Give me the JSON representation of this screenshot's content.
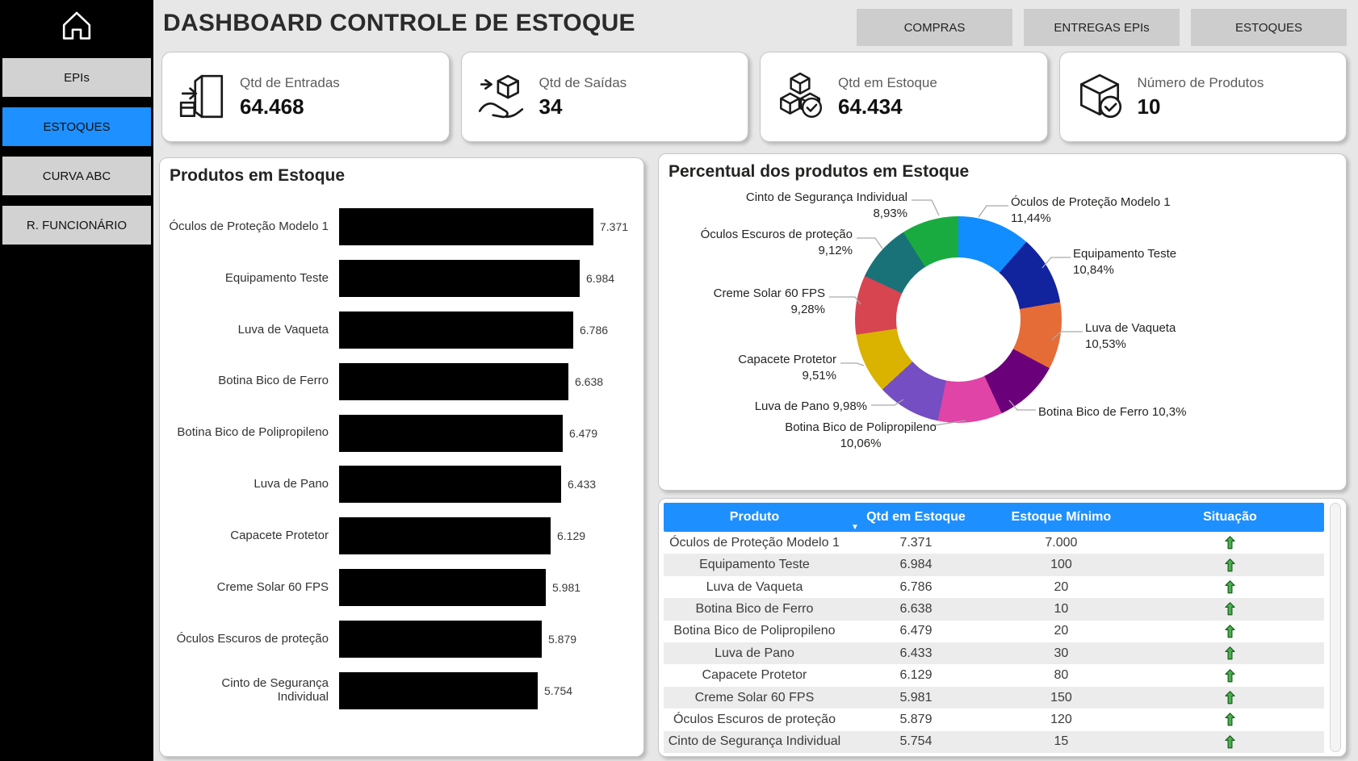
{
  "header": {
    "title": "DASHBOARD CONTROLE DE ESTOQUE",
    "nav_buttons": [
      "COMPRAS",
      "ENTREGAS EPIs",
      "ESTOQUES"
    ]
  },
  "sidebar": {
    "home_icon": "home-icon",
    "items": [
      {
        "label": "EPIs",
        "active": false
      },
      {
        "label": "ESTOQUES",
        "active": true
      },
      {
        "label": "CURVA ABC",
        "active": false
      },
      {
        "label": "R. FUNCIONÁRIO",
        "active": false
      }
    ]
  },
  "kpis": [
    {
      "icon": "entradas-door-arrow-icon",
      "label": "Qtd de Entradas",
      "value": "64.468"
    },
    {
      "icon": "saidas-hand-box-icon",
      "label": "Qtd de Saídas",
      "value": "34"
    },
    {
      "icon": "estoque-cubes-check-icon",
      "label": "Qtd em Estoque",
      "value": "64.434"
    },
    {
      "icon": "produtos-box-check-icon",
      "label": "Número de Produtos",
      "value": "10"
    }
  ],
  "colors": {
    "sidebar_bg": "#000000",
    "sidebar_button": "#d2d2d2",
    "sidebar_active": "#1e90ff",
    "page_bg": "#e7e7e7",
    "table_header": "#1e8fff",
    "bar_fill": "#000000",
    "status_up_arrow": "#4caf50"
  },
  "chart_data": [
    {
      "type": "bar",
      "title": "Produtos em Estoque",
      "orientation": "horizontal",
      "grid": false,
      "xlim": [
        0,
        7500
      ],
      "categories": [
        "Óculos de Proteção Modelo 1",
        "Equipamento Teste",
        "Luva de Vaqueta",
        "Botina Bico de Ferro",
        "Botina Bico de Polipropileno",
        "Luva de Pano",
        "Capacete Protetor",
        "Creme Solar 60 FPS",
        "Óculos Escuros de proteção",
        "Cinto de Segurança Individual"
      ],
      "values": [
        7371,
        6984,
        6786,
        6638,
        6479,
        6433,
        6129,
        5981,
        5879,
        5754
      ],
      "value_labels": [
        "7.371",
        "6.984",
        "6.786",
        "6.638",
        "6.479",
        "6.433",
        "6.129",
        "5.981",
        "5.879",
        "5.754"
      ],
      "bar_color": "#000000"
    },
    {
      "type": "pie",
      "subtype": "donut",
      "title": "Percentual dos produtos em Estoque",
      "slices": [
        {
          "label": "Óculos de Proteção Modelo 1",
          "pct": 11.44,
          "pct_label": "11,44%",
          "color": "#118DFF"
        },
        {
          "label": "Equipamento Teste",
          "pct": 10.84,
          "pct_label": "10,84%",
          "color": "#12239E"
        },
        {
          "label": "Luva de Vaqueta",
          "pct": 10.53,
          "pct_label": "10,53%",
          "color": "#E66C37"
        },
        {
          "label": "Botina Bico de Ferro",
          "pct": 10.3,
          "pct_label": "10,3%",
          "color": "#6B007B"
        },
        {
          "label": "Botina Bico de Polipropileno",
          "pct": 10.06,
          "pct_label": "10,06%",
          "color": "#E044A7"
        },
        {
          "label": "Luva de Pano",
          "pct": 9.98,
          "pct_label": "9,98%",
          "color": "#744EC2"
        },
        {
          "label": "Capacete Protetor",
          "pct": 9.51,
          "pct_label": "9,51%",
          "color": "#D9B300"
        },
        {
          "label": "Creme Solar 60 FPS",
          "pct": 9.28,
          "pct_label": "9,28%",
          "color": "#D64550"
        },
        {
          "label": "Óculos Escuros de proteção",
          "pct": 9.12,
          "pct_label": "9,12%",
          "color": "#197278"
        },
        {
          "label": "Cinto de Segurança Individual",
          "pct": 8.93,
          "pct_label": "8,93%",
          "color": "#1AAB40"
        }
      ]
    },
    {
      "type": "table",
      "columns": [
        "Produto",
        "Qtd em Estoque",
        "Estoque Mínimo",
        "Situação"
      ],
      "sorted_by": "Qtd em Estoque",
      "sort_direction": "desc",
      "rows": [
        {
          "produto": "Óculos de Proteção Modelo 1",
          "qtd": "7.371",
          "minimo": "7.000",
          "situacao": "up"
        },
        {
          "produto": "Equipamento Teste",
          "qtd": "6.984",
          "minimo": "100",
          "situacao": "up"
        },
        {
          "produto": "Luva de Vaqueta",
          "qtd": "6.786",
          "minimo": "20",
          "situacao": "up"
        },
        {
          "produto": "Botina Bico de Ferro",
          "qtd": "6.638",
          "minimo": "10",
          "situacao": "up"
        },
        {
          "produto": "Botina Bico de Polipropileno",
          "qtd": "6.479",
          "minimo": "20",
          "situacao": "up"
        },
        {
          "produto": "Luva de Pano",
          "qtd": "6.433",
          "minimo": "30",
          "situacao": "up"
        },
        {
          "produto": "Capacete Protetor",
          "qtd": "6.129",
          "minimo": "80",
          "situacao": "up"
        },
        {
          "produto": "Creme Solar 60 FPS",
          "qtd": "5.981",
          "minimo": "150",
          "situacao": "up"
        },
        {
          "produto": "Óculos Escuros de proteção",
          "qtd": "5.879",
          "minimo": "120",
          "situacao": "up"
        },
        {
          "produto": "Cinto de Segurança Individual",
          "qtd": "5.754",
          "minimo": "15",
          "situacao": "up"
        }
      ]
    }
  ]
}
